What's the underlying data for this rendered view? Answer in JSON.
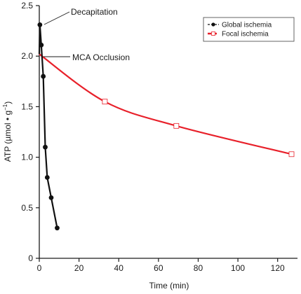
{
  "chart_data": {
    "type": "line",
    "xlabel": "Time (min)",
    "ylabel": "ATP (µmol • g",
    "ylabel_sup": "−1",
    "ylabel_close": ")",
    "xlim": [
      0,
      130
    ],
    "ylim": [
      0,
      2.5
    ],
    "xticks": [
      0,
      20,
      40,
      60,
      80,
      100,
      120
    ],
    "yticks": [
      0,
      0.5,
      1.0,
      1.5,
      2.0,
      2.5
    ],
    "ytick_labels": [
      "0",
      "0.5",
      "1.0",
      "1.5",
      "2.0",
      "2.5"
    ],
    "legend_position": "top-right",
    "series": [
      {
        "name": "Global ischemia",
        "color": "#111111",
        "marker": "filled-circle",
        "x": [
          0,
          0.3,
          1,
          2,
          3,
          4,
          6,
          9
        ],
        "y": [
          2.02,
          2.31,
          2.11,
          1.8,
          1.1,
          0.8,
          0.6,
          0.3
        ]
      },
      {
        "name": "Focal ischemia",
        "color": "#e8202a",
        "marker": "open-square",
        "x": [
          0,
          33,
          69,
          127
        ],
        "y": [
          2.02,
          1.55,
          1.31,
          1.03
        ]
      }
    ],
    "annotations": [
      {
        "text": "Decapitation",
        "x": 0.3,
        "y": 2.31
      },
      {
        "text": "MCA Occlusion",
        "x": 0,
        "y": 2.02
      }
    ]
  }
}
